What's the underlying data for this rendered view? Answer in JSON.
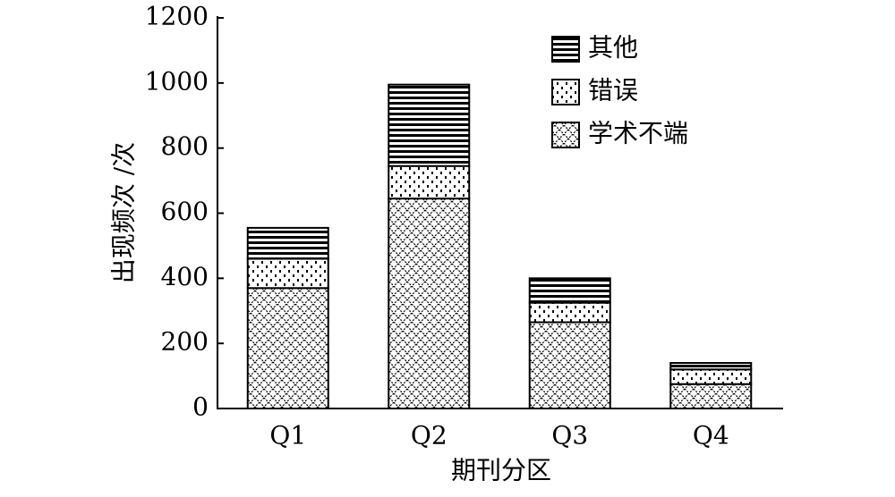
{
  "chart_data": {
    "type": "stacked_bar",
    "xlabel": "期刊分区",
    "ylabel": "出现频次 /次",
    "categories": [
      "Q1",
      "Q2",
      "Q3",
      "Q4"
    ],
    "series": [
      {
        "name": "学术不端",
        "color": "#000000",
        "pattern": "crosshatch",
        "values": [
          370,
          645,
          265,
          75
        ]
      },
      {
        "name": "错误",
        "color": "#000000",
        "pattern": "dots",
        "values": [
          90,
          100,
          60,
          45
        ]
      },
      {
        "name": "其他",
        "color": "#000000",
        "pattern": "hlines",
        "values": [
          95,
          250,
          75,
          20
        ]
      }
    ],
    "ylim": [
      0,
      1200
    ],
    "yticks": [
      0,
      200,
      400,
      600,
      800,
      1000,
      1200
    ],
    "legend": "upper right"
  }
}
